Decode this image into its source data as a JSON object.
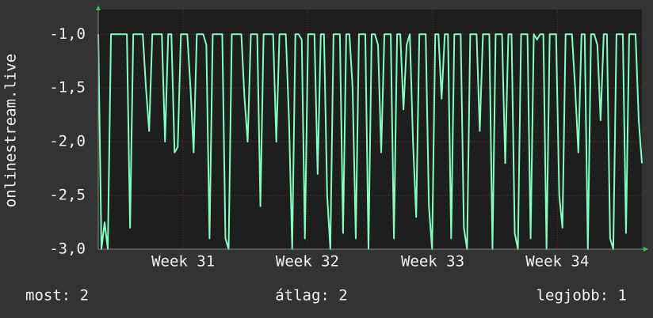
{
  "chart_data": {
    "type": "line",
    "y_label": "onlinestream.live",
    "color": "#80ffc0",
    "values": [
      -1,
      -3,
      -2.75,
      -3,
      -1,
      -1,
      -1,
      -1,
      -1,
      -1,
      -2.8,
      -1,
      -1,
      -1,
      -1,
      -1.5,
      -1.9,
      -1,
      -1,
      -1,
      -1,
      -2,
      -1,
      -1,
      -2.1,
      -2.05,
      -1,
      -1,
      -1,
      -1.5,
      -2.1,
      -1,
      -1,
      -1,
      -1.1,
      -2.9,
      -1,
      -1,
      -1,
      -1,
      -2.9,
      -3,
      -1,
      -1,
      -1,
      -1,
      -1.6,
      -2,
      -1,
      -1,
      -1,
      -2.6,
      -1,
      -1,
      -1,
      -1,
      -2,
      -1,
      -1,
      -1,
      -1.8,
      -3,
      -1,
      -1,
      -1.05,
      -2.9,
      -1,
      -1,
      -1,
      -2.3,
      -1,
      -1,
      -2.5,
      -3,
      -1,
      -1,
      -1,
      -2.85,
      -1,
      -1,
      -1.5,
      -2.9,
      -1,
      -1,
      -1,
      -3,
      -1,
      -1,
      -1.1,
      -2.1,
      -1,
      -1,
      -1,
      -2.9,
      -1,
      -1,
      -1.7,
      -1.1,
      -1,
      -2,
      -2.7,
      -1,
      -1,
      -1,
      -2.6,
      -3,
      -1,
      -1,
      -1.6,
      -1,
      -1,
      -2.9,
      -1,
      -1,
      -1,
      -2.8,
      -3,
      -1,
      -1,
      -1,
      -1.9,
      -1,
      -1,
      -1,
      -3,
      -1,
      -1,
      -1,
      -2.2,
      -1,
      -1,
      -2.85,
      -3,
      -1,
      -1,
      -1,
      -2.9,
      -1,
      -1.05,
      -1,
      -1,
      -3,
      -1,
      -1,
      -1,
      -2.5,
      -2.8,
      -1,
      -1,
      -1,
      -1.5,
      -2.1,
      -1,
      -1,
      -3,
      -1,
      -1,
      -1.1,
      -1.8,
      -1,
      -1,
      -2.9,
      -3,
      -1,
      -1,
      -1,
      -2.85,
      -1,
      -1,
      -1,
      -1.8,
      -2.2
    ],
    "xlim": [
      0,
      171
    ],
    "xticks": [
      {
        "value": 26.7,
        "label": "Week 31"
      },
      {
        "value": 65.8,
        "label": "Week 32"
      },
      {
        "value": 105.2,
        "label": "Week 33"
      },
      {
        "value": 144.4,
        "label": "Week 34"
      }
    ],
    "ylim": [
      -3,
      -0.77
    ],
    "yticks": [
      {
        "value": -3,
        "label": "-3,0"
      },
      {
        "value": -2.5,
        "label": "-2,5"
      },
      {
        "value": -2,
        "label": "-2,0"
      },
      {
        "value": -1.5,
        "label": "-1,5"
      },
      {
        "value": -1,
        "label": "-1,0"
      }
    ],
    "grid": true,
    "stats": [
      "most: 2",
      "átlag: 2",
      "legjobb: 1"
    ]
  }
}
